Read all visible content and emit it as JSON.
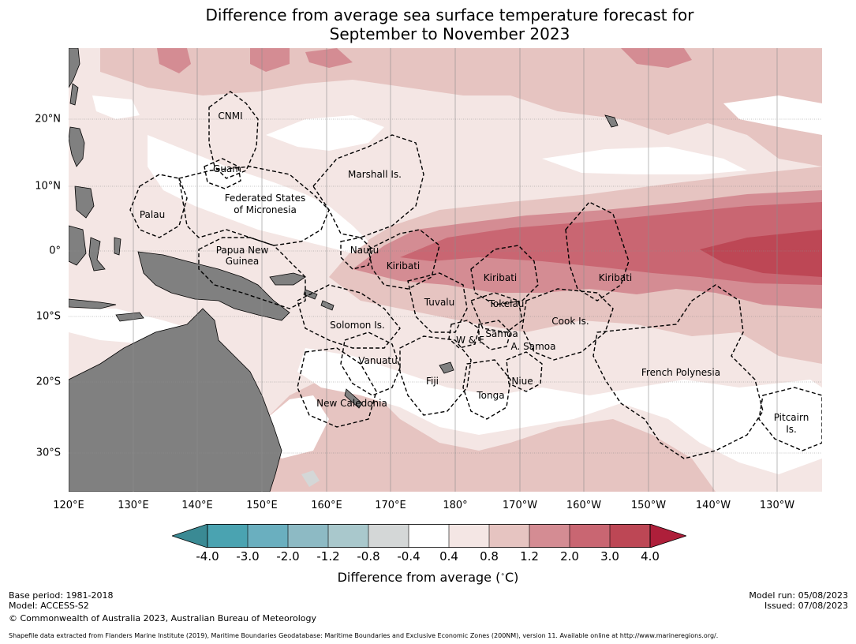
{
  "title_line1": "Difference from average sea surface temperature forecast for",
  "title_line2": "September to November 2023",
  "map": {
    "lat_labels": [
      "20°N",
      "10°N",
      "0°",
      "10°S",
      "20°S",
      "30°S"
    ],
    "lon_labels": [
      "120°E",
      "130°E",
      "140°E",
      "150°E",
      "160°E",
      "170°E",
      "180°",
      "170°W",
      "160°W",
      "150°W",
      "140°W",
      "130°W"
    ],
    "regions": {
      "cnmi": "CNMI",
      "guam": "Guam",
      "marshall": "Marshall Is.",
      "fsm1": "Federated States",
      "fsm2": "of Micronesia",
      "palau": "Palau",
      "png1": "Papua New",
      "png2": "Guinea",
      "nauru": "Nauru",
      "kiribati_w": "Kiribati",
      "kiribati_c": "Kiribati",
      "kiribati_e": "Kiribati",
      "tuvalu": "Tuvalu",
      "tokelau": "Tokelau",
      "cook": "Cook Is.",
      "solomon": "Solomon Is.",
      "samoa": "Samoa",
      "wf": "W & F",
      "asamoa": "A. Samoa",
      "vanuatu": "Vanuatu",
      "fiji": "Fiji",
      "niue": "Niue",
      "tonga": "Tonga",
      "new_caledonia": "New Caledonia",
      "french_polynesia": "French Polynesia",
      "pitcairn1": "Pitcairn",
      "pitcairn2": "Is."
    },
    "colors": {
      "land": "#808080",
      "neg_4": "#3a8a94",
      "neg_3": "#4aa3b1",
      "neg_2": "#6aafbf",
      "neg_12": "#8dbac4",
      "neg_08": "#a9c8cc",
      "neg_04": "#d4d7d7",
      "neutral": "#ffffff",
      "pos_04": "#f4e6e4",
      "pos_08": "#e6c4c1",
      "pos_12": "#d48c93",
      "pos_2": "#c96672",
      "pos_3": "#bd4755",
      "pos_4": "#ae1f3a"
    }
  },
  "colorbar": {
    "ticks": [
      "-4.0",
      "-3.0",
      "-2.0",
      "-1.2",
      "-0.8",
      "-0.4",
      "0.4",
      "0.8",
      "1.2",
      "2.0",
      "3.0",
      "4.0"
    ],
    "label": "Difference from average (°C)",
    "label_unit_pre": "Difference from average (",
    "label_unit_post": "C)"
  },
  "footer": {
    "base_period": "Base period: 1981-2018",
    "model": "Model: ACCESS-S2",
    "copyright": "© Commonwealth of Australia 2023, Australian Bureau of Meteorology",
    "model_run": "Model run: 05/08/2023",
    "issued": "Issued: 07/08/2023",
    "shapefile": "Shapefile data extracted from Flanders Marine Institute (2019), Maritime Boundaries Geodatabase: Maritime Boundaries and Exclusive Economic Zones (200NM), version 11. Available online at http://www.marineregions.org/."
  }
}
